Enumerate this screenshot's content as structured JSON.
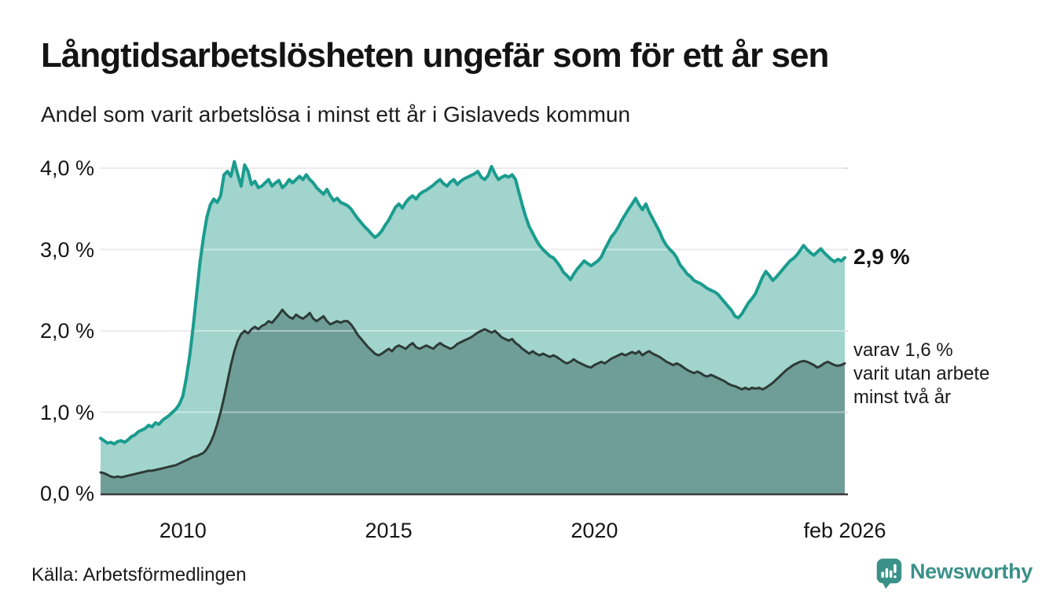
{
  "header": {
    "title": "Långtidsarbetslösheten ungefär som för ett år sen",
    "subtitle": "Andel som varit arbetslösa i minst ett år i Gislaveds kommun"
  },
  "annotations": {
    "end_value_label": "2,9 %",
    "note_lines": [
      "varav 1,6 %",
      "varit utan arbete",
      "minst två år"
    ]
  },
  "footer": {
    "source": "Källa: Arbetsförmedlingen",
    "brand_name": "Newsworthy"
  },
  "colors": {
    "line_primary": "#1a9c8e",
    "fill_primary": "#a0d4cd",
    "line_secondary": "#2e3b38",
    "fill_secondary": "#6f9e99",
    "gridline": "#dcdcdc",
    "axis_line": "#3a3a3a",
    "brand_teal": "#3a9189"
  },
  "chart_data": {
    "type": "area",
    "title": "Långtidsarbetslösheten ungefär som för ett år sen",
    "subtitle": "Andel som varit arbetslösa i minst ett år i Gislaveds kommun",
    "x_range": [
      2008,
      2026.083
    ],
    "x_step_months": 1,
    "ylim": [
      0,
      4.3
    ],
    "grid": true,
    "y_gridlines": [
      {
        "v": 0,
        "label": "0,0 %"
      },
      {
        "v": 1,
        "label": "1,0 %"
      },
      {
        "v": 2,
        "label": "2,0 %"
      },
      {
        "v": 3,
        "label": "3,0 %"
      },
      {
        "v": 4,
        "label": "4,0 %"
      }
    ],
    "x_ticks": [
      {
        "year": 2010,
        "label": "2010"
      },
      {
        "year": 2015,
        "label": "2015"
      },
      {
        "year": 2020,
        "label": "2020"
      },
      {
        "year": 2026.083,
        "label": "feb 2026"
      }
    ],
    "series": [
      {
        "id": "unemployed-at-least-one-year",
        "end_value_pct": 2.9,
        "color": "#1a9c8e",
        "fill": "#a0d4cd",
        "line_width": 4,
        "values": [
          0.68,
          0.65,
          0.62,
          0.63,
          0.61,
          0.64,
          0.65,
          0.63,
          0.66,
          0.7,
          0.72,
          0.76,
          0.78,
          0.8,
          0.84,
          0.82,
          0.87,
          0.85,
          0.9,
          0.93,
          0.96,
          1.0,
          1.04,
          1.1,
          1.2,
          1.42,
          1.7,
          2.05,
          2.45,
          2.85,
          3.15,
          3.4,
          3.55,
          3.62,
          3.58,
          3.66,
          3.92,
          3.96,
          3.9,
          4.08,
          3.92,
          3.78,
          4.04,
          3.96,
          3.8,
          3.84,
          3.76,
          3.78,
          3.82,
          3.86,
          3.78,
          3.82,
          3.85,
          3.76,
          3.8,
          3.86,
          3.82,
          3.86,
          3.9,
          3.86,
          3.92,
          3.86,
          3.82,
          3.76,
          3.72,
          3.68,
          3.74,
          3.66,
          3.6,
          3.63,
          3.58,
          3.56,
          3.54,
          3.5,
          3.44,
          3.38,
          3.33,
          3.28,
          3.24,
          3.19,
          3.15,
          3.18,
          3.23,
          3.3,
          3.36,
          3.44,
          3.52,
          3.56,
          3.51,
          3.58,
          3.63,
          3.66,
          3.62,
          3.68,
          3.71,
          3.73,
          3.76,
          3.79,
          3.83,
          3.86,
          3.81,
          3.78,
          3.83,
          3.86,
          3.8,
          3.84,
          3.87,
          3.89,
          3.91,
          3.93,
          3.96,
          3.89,
          3.86,
          3.91,
          4.02,
          3.93,
          3.86,
          3.89,
          3.91,
          3.89,
          3.92,
          3.86,
          3.7,
          3.54,
          3.4,
          3.28,
          3.2,
          3.12,
          3.05,
          3.0,
          2.96,
          2.92,
          2.9,
          2.85,
          2.79,
          2.72,
          2.68,
          2.63,
          2.7,
          2.76,
          2.81,
          2.86,
          2.83,
          2.8,
          2.83,
          2.86,
          2.91,
          3.0,
          3.08,
          3.16,
          3.21,
          3.28,
          3.36,
          3.43,
          3.5,
          3.56,
          3.63,
          3.55,
          3.49,
          3.56,
          3.46,
          3.38,
          3.3,
          3.22,
          3.12,
          3.05,
          3.0,
          2.96,
          2.9,
          2.81,
          2.76,
          2.7,
          2.67,
          2.62,
          2.6,
          2.58,
          2.55,
          2.52,
          2.5,
          2.48,
          2.45,
          2.4,
          2.35,
          2.3,
          2.25,
          2.18,
          2.16,
          2.21,
          2.28,
          2.35,
          2.4,
          2.46,
          2.56,
          2.66,
          2.73,
          2.68,
          2.62,
          2.66,
          2.71,
          2.76,
          2.81,
          2.86,
          2.89,
          2.93,
          2.99,
          3.05,
          3.0,
          2.96,
          2.93,
          2.97,
          3.01,
          2.96,
          2.92,
          2.88,
          2.85,
          2.88,
          2.86,
          2.9
        ]
      },
      {
        "id": "unemployed-at-least-two-years",
        "end_value_pct": 1.6,
        "color": "#2e3b38",
        "fill": "#6f9e99",
        "line_width": 3,
        "values": [
          0.26,
          0.25,
          0.23,
          0.21,
          0.2,
          0.21,
          0.2,
          0.21,
          0.22,
          0.23,
          0.24,
          0.25,
          0.26,
          0.27,
          0.28,
          0.28,
          0.29,
          0.3,
          0.31,
          0.32,
          0.33,
          0.34,
          0.35,
          0.37,
          0.39,
          0.41,
          0.43,
          0.45,
          0.46,
          0.48,
          0.5,
          0.55,
          0.62,
          0.72,
          0.85,
          1.0,
          1.18,
          1.38,
          1.58,
          1.75,
          1.88,
          1.96,
          2.0,
          1.97,
          2.02,
          2.05,
          2.02,
          2.06,
          2.08,
          2.12,
          2.1,
          2.15,
          2.2,
          2.26,
          2.21,
          2.17,
          2.15,
          2.2,
          2.17,
          2.15,
          2.18,
          2.22,
          2.15,
          2.12,
          2.15,
          2.18,
          2.12,
          2.08,
          2.1,
          2.12,
          2.1,
          2.12,
          2.12,
          2.08,
          2.02,
          1.95,
          1.9,
          1.85,
          1.8,
          1.76,
          1.72,
          1.7,
          1.72,
          1.75,
          1.78,
          1.75,
          1.8,
          1.82,
          1.8,
          1.78,
          1.82,
          1.85,
          1.8,
          1.78,
          1.8,
          1.82,
          1.8,
          1.78,
          1.82,
          1.85,
          1.82,
          1.8,
          1.78,
          1.8,
          1.84,
          1.86,
          1.88,
          1.9,
          1.92,
          1.95,
          1.98,
          2.0,
          2.02,
          2.0,
          1.98,
          2.0,
          1.96,
          1.92,
          1.9,
          1.88,
          1.9,
          1.85,
          1.82,
          1.78,
          1.75,
          1.72,
          1.75,
          1.72,
          1.7,
          1.72,
          1.7,
          1.68,
          1.7,
          1.68,
          1.65,
          1.62,
          1.6,
          1.62,
          1.65,
          1.62,
          1.6,
          1.58,
          1.56,
          1.55,
          1.58,
          1.6,
          1.62,
          1.6,
          1.63,
          1.66,
          1.68,
          1.7,
          1.72,
          1.7,
          1.72,
          1.74,
          1.72,
          1.75,
          1.7,
          1.73,
          1.75,
          1.72,
          1.7,
          1.68,
          1.65,
          1.62,
          1.6,
          1.58,
          1.6,
          1.58,
          1.55,
          1.52,
          1.5,
          1.48,
          1.5,
          1.48,
          1.45,
          1.44,
          1.46,
          1.44,
          1.42,
          1.4,
          1.38,
          1.35,
          1.33,
          1.32,
          1.3,
          1.28,
          1.3,
          1.28,
          1.3,
          1.29,
          1.3,
          1.28,
          1.3,
          1.33,
          1.36,
          1.4,
          1.44,
          1.48,
          1.52,
          1.55,
          1.58,
          1.6,
          1.62,
          1.63,
          1.62,
          1.6,
          1.58,
          1.55,
          1.57,
          1.6,
          1.62,
          1.6,
          1.58,
          1.57,
          1.58,
          1.6
        ]
      }
    ]
  }
}
